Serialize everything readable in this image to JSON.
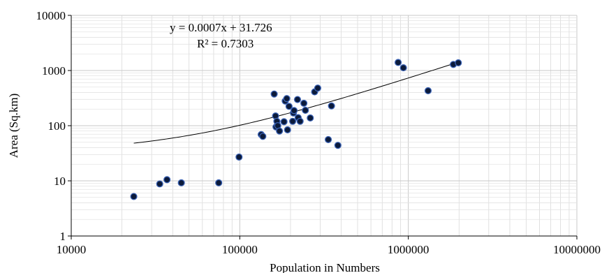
{
  "chart_data": {
    "type": "scatter",
    "title": "",
    "xlabel": "Population in Numbers",
    "ylabel": "Area (Sq.km)",
    "x_scale": "log",
    "y_scale": "log",
    "xlim": [
      10000,
      10000000
    ],
    "ylim": [
      1,
      10000
    ],
    "x_ticks": [
      "10000",
      "100000",
      "1000000",
      "10000000"
    ],
    "y_ticks": [
      "1",
      "10",
      "100",
      "1000",
      "10000"
    ],
    "grid": "major and minor (logarithmic)",
    "legend": "none",
    "marker_color": "#0b1a3a",
    "marker_edge_color": "#3a62b5",
    "trendline": {
      "equation": "y = 0.0007x + 31.726",
      "r_squared": "R² = 0.7303",
      "slope": 0.0007,
      "intercept": 31.726,
      "x_range": [
        23500,
        2000000
      ]
    },
    "points": [
      [
        23500,
        5.2
      ],
      [
        33500,
        8.8
      ],
      [
        37000,
        10.5
      ],
      [
        45000,
        9.2
      ],
      [
        75000,
        9.2
      ],
      [
        99000,
        27
      ],
      [
        134000,
        69
      ],
      [
        137000,
        64
      ],
      [
        160000,
        375
      ],
      [
        163000,
        150
      ],
      [
        164000,
        95
      ],
      [
        166000,
        120
      ],
      [
        168000,
        100
      ],
      [
        172000,
        80
      ],
      [
        183000,
        118
      ],
      [
        186000,
        280
      ],
      [
        190000,
        310
      ],
      [
        192000,
        84
      ],
      [
        196000,
        224
      ],
      [
        206000,
        120
      ],
      [
        208000,
        170
      ],
      [
        210000,
        188
      ],
      [
        220000,
        298
      ],
      [
        222000,
        140
      ],
      [
        228000,
        120
      ],
      [
        240000,
        255
      ],
      [
        245000,
        190
      ],
      [
        262000,
        138
      ],
      [
        278000,
        410
      ],
      [
        290000,
        480
      ],
      [
        335000,
        56
      ],
      [
        350000,
        228
      ],
      [
        382000,
        44
      ],
      [
        870000,
        1400
      ],
      [
        935000,
        1120
      ],
      [
        1310000,
        430
      ],
      [
        1850000,
        1290
      ],
      [
        1980000,
        1380
      ]
    ]
  }
}
